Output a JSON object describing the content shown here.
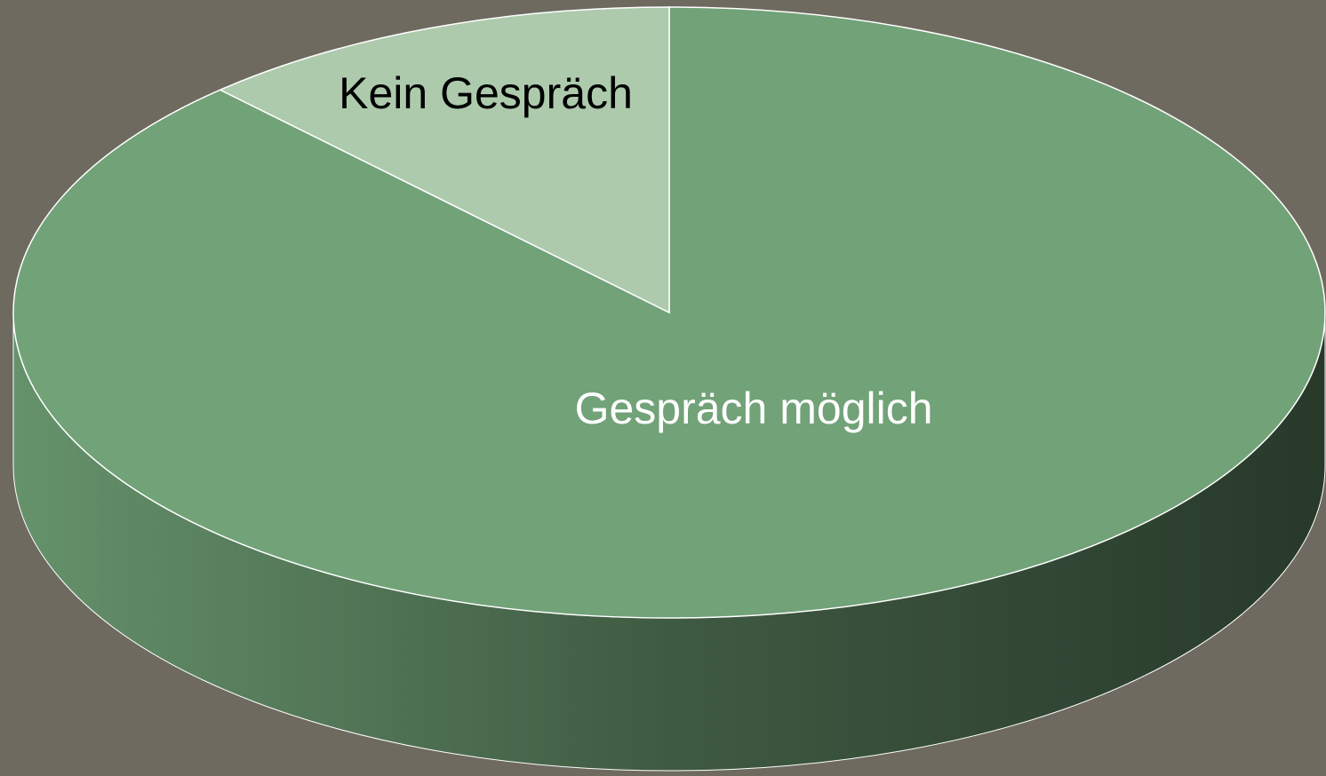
{
  "chart_data": {
    "type": "pie",
    "categories": [
      "Gespräch möglich",
      "Kein Gespräch"
    ],
    "values": [
      88,
      12
    ],
    "colors": [
      "#72a278",
      "#adcaad"
    ],
    "label_colors": [
      "#ffffff",
      "#000000"
    ]
  }
}
